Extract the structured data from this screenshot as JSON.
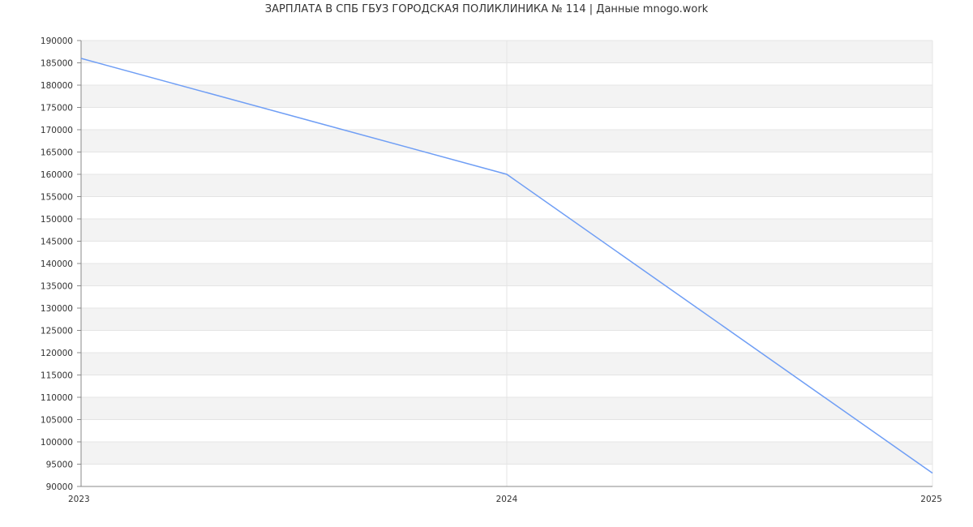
{
  "chart_data": {
    "type": "line",
    "title": "ЗАРПЛАТА В СПБ ГБУЗ ГОРОДСКАЯ ПОЛИКЛИНИКА № 114 | Данные mnogo.work",
    "xlabel": "",
    "ylabel": "",
    "x": [
      "2023",
      "2024",
      "2025"
    ],
    "series": [
      {
        "values": [
          186000,
          160000,
          93000
        ],
        "color": "#6f9ef5"
      }
    ],
    "ylim": [
      90000,
      190000
    ],
    "ytick_step": 5000,
    "grid": true,
    "band_color": "#f3f3f3"
  }
}
